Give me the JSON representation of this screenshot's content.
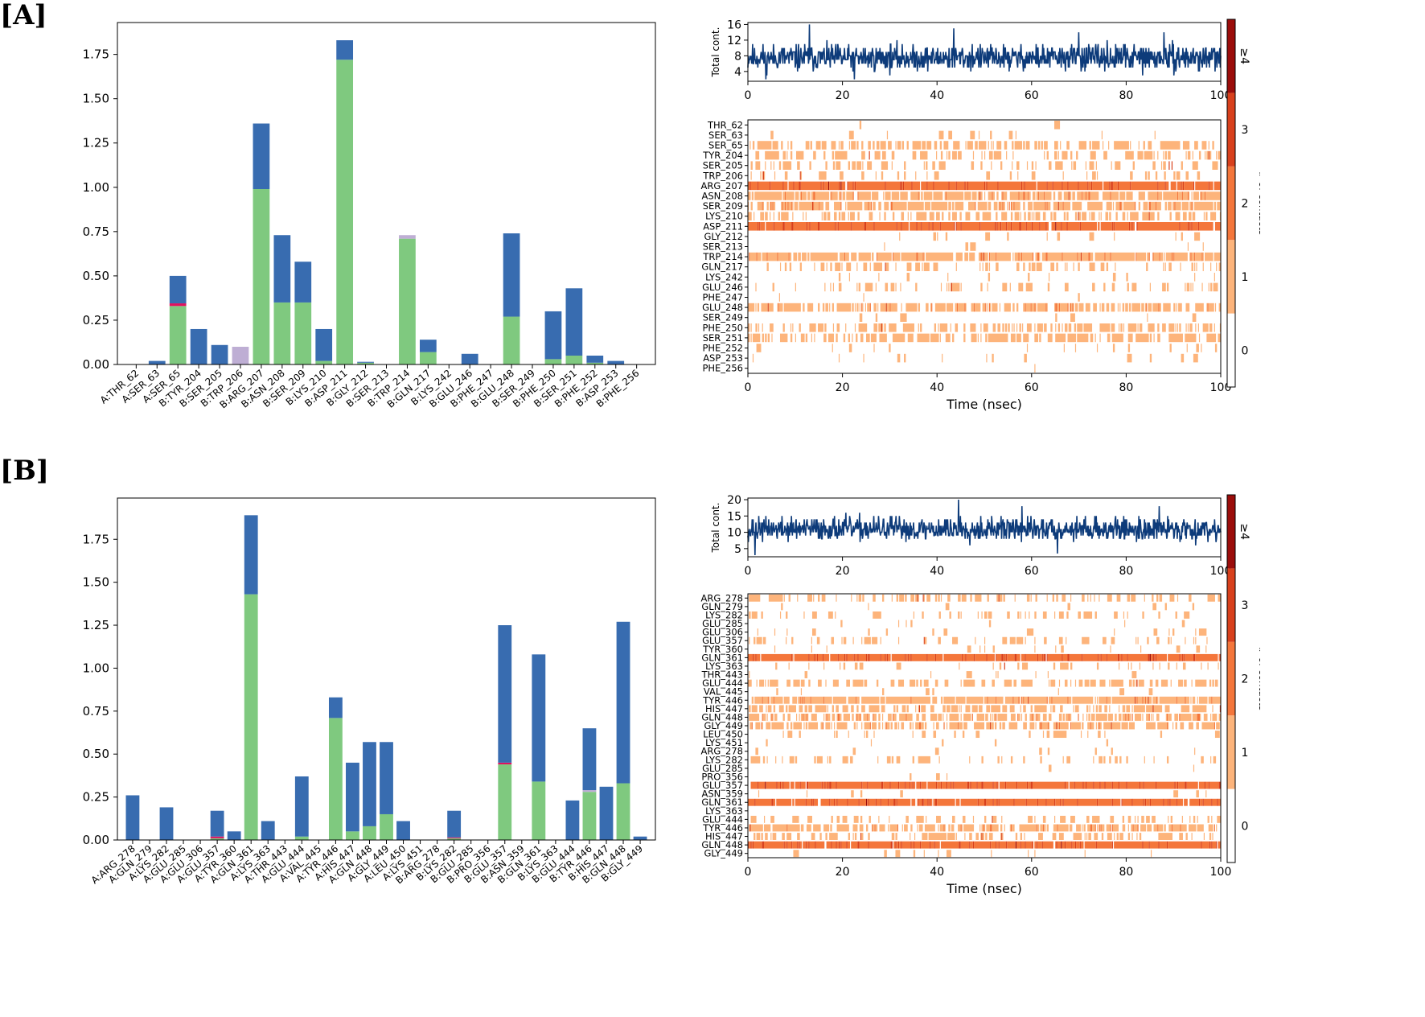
{
  "colors": {
    "hbond": "#7fc97f",
    "hydrophobic": "#beaed4",
    "ionic": "#e0115f",
    "water_bridge": "#386cb0",
    "timeline_line": "#0d3b7a",
    "frame": "#000000",
    "heat_scale": [
      "#ffffff",
      "#fdb47b",
      "#f4763b",
      "#d8401c",
      "#9b0d0b"
    ]
  },
  "chart_data": [
    {
      "id": "A-bar",
      "panel": "[A]",
      "type": "bar",
      "stacked": true,
      "categories": [
        "A:THR_62",
        "A:SER_63",
        "A:SER_65",
        "B:TYR_204",
        "B:SER_205",
        "B:TRP_206",
        "B:ARG_207",
        "B:ASN_208",
        "B:SER_209",
        "B:LYS_210",
        "B:ASP_211",
        "B:GLY_212",
        "B:SER_213",
        "B:TRP_214",
        "B:GLN_217",
        "B:LYS_242",
        "B:GLU_246",
        "B:PHE_247",
        "B:GLU_248",
        "B:SER_249",
        "B:PHE_250",
        "B:SER_251",
        "B:PHE_252",
        "B:ASP_253",
        "B:PHE_256"
      ],
      "series": [
        {
          "key": "hbond",
          "values": [
            0,
            0,
            0.33,
            0,
            0,
            0,
            0.99,
            0.35,
            0.35,
            0.02,
            1.72,
            0.01,
            0,
            0.71,
            0.07,
            0,
            0,
            0,
            0.27,
            0,
            0.03,
            0.05,
            0.01,
            0,
            0
          ]
        },
        {
          "key": "hydrophobic",
          "values": [
            0,
            0,
            0,
            0,
            0,
            0.1,
            0,
            0,
            0,
            0,
            0,
            0,
            0,
            0.02,
            0,
            0,
            0,
            0,
            0,
            0,
            0,
            0,
            0,
            0,
            0
          ]
        },
        {
          "key": "ionic",
          "values": [
            0,
            0,
            0.015,
            0,
            0,
            0,
            0,
            0,
            0,
            0,
            0,
            0,
            0,
            0,
            0,
            0,
            0,
            0,
            0,
            0,
            0,
            0,
            0,
            0,
            0
          ]
        },
        {
          "key": "water_bridge",
          "values": [
            0,
            0.02,
            0.155,
            0.2,
            0.11,
            0,
            0.37,
            0.38,
            0.23,
            0.18,
            0.11,
            0.005,
            0,
            0,
            0.07,
            0,
            0.06,
            0,
            0.47,
            0,
            0.27,
            0.38,
            0.04,
            0.02,
            0
          ]
        }
      ],
      "ylim": [
        0,
        1.93
      ],
      "yticks": [
        "0.00",
        "0.25",
        "0.50",
        "0.75",
        "1.00",
        "1.25",
        "1.50",
        "1.75"
      ]
    },
    {
      "id": "A-total",
      "type": "line",
      "ylabel": "Total cont.",
      "xlim": [
        0,
        100
      ],
      "ylim": [
        1.5,
        16.5
      ],
      "yticks": [
        "4",
        "8",
        "12",
        "16"
      ],
      "xticks": [
        "0",
        "20",
        "40",
        "60",
        "80",
        "100"
      ],
      "n_points": 1000,
      "mean": 7.5,
      "spread": 2.3,
      "min": 2,
      "max": 16,
      "peaks": [
        [
          13.0,
          16
        ],
        [
          3.8,
          2
        ],
        [
          22.5,
          2
        ],
        [
          43.5,
          15
        ],
        [
          70,
          14
        ],
        [
          88,
          14
        ]
      ]
    },
    {
      "id": "A-heat",
      "type": "heatmap",
      "xlabel": "Time (nsec)",
      "xlim": [
        0,
        100
      ],
      "xticks": [
        "0",
        "20",
        "40",
        "60",
        "80",
        "100"
      ],
      "rows": [
        "THR_62",
        "SER_63",
        "SER_65",
        "TYR_204",
        "SER_205",
        "TRP_206",
        "ARG_207",
        "ASN_208",
        "SER_209",
        "LYS_210",
        "ASP_211",
        "GLY_212",
        "SER_213",
        "TRP_214",
        "GLN_217",
        "LYS_242",
        "GLU_246",
        "PHE_247",
        "GLU_248",
        "SER_249",
        "PHE_250",
        "SER_251",
        "PHE_252",
        "ASP_253",
        "PHE_256"
      ],
      "row_labels": [
        "THR_62",
        "SER_63",
        "SER_65",
        "TYR_204",
        "SER_205",
        "TRP_206",
        "ARG_207",
        "ASN_208",
        "SER_209",
        "LYS_210",
        "ASP_211",
        "GLY_212",
        "SER_213",
        "TRP_214",
        "GLN_217",
        "LYS_242",
        "GLU_246",
        "PHE_247",
        "GLU_248",
        "SER_249",
        "PHE_250",
        "SER_251",
        "PHE_252",
        "ASP_253",
        "PHE_256"
      ],
      "row_density": [
        0.01,
        0.03,
        0.42,
        0.25,
        0.14,
        0.09,
        0.97,
        0.78,
        0.7,
        0.35,
        0.99,
        0.04,
        0.01,
        0.8,
        0.22,
        0.03,
        0.12,
        0.01,
        0.6,
        0.02,
        0.37,
        0.5,
        0.05,
        0.03,
        0.01
      ],
      "row_level": [
        1,
        1,
        1,
        1,
        1,
        1,
        2,
        1,
        1,
        1,
        2,
        1,
        1,
        1,
        1,
        1,
        1,
        1,
        1,
        1,
        1,
        1,
        1,
        1,
        1
      ]
    },
    {
      "id": "A-cbar",
      "type": "heatmap",
      "ylabel": "# of contacts",
      "levels": [
        "0",
        "1",
        "2",
        "3",
        "≥4"
      ]
    },
    {
      "id": "B-bar",
      "panel": "[B]",
      "type": "bar",
      "stacked": true,
      "categories": [
        "A:ARG_278",
        "A:GLN_279",
        "A:LYS_282",
        "A:GLU_285",
        "A:GLU_306",
        "A:GLU_357",
        "A:TYR_360",
        "A:GLN_361",
        "A:LYS_363",
        "A:THR_443",
        "A:GLU_444",
        "A:VAL_445",
        "A:TYR_446",
        "A:HIS_447",
        "A:GLN_448",
        "A:GLY_449",
        "A:LEU_450",
        "A:LYS_451",
        "B:ARG_278",
        "B:LYS_282",
        "B:GLU_285",
        "B:PRO_356",
        "B:GLU_357",
        "B:ASN_359",
        "B:GLN_361",
        "B:LYS_363",
        "B:GLU_444",
        "B:TYR_446",
        "B:HIS_447",
        "B:GLN_448",
        "B:GLY_449"
      ],
      "series": [
        {
          "key": "hbond",
          "values": [
            0,
            0,
            0,
            0,
            0,
            0.01,
            0,
            1.43,
            0,
            0,
            0.02,
            0,
            0.71,
            0.05,
            0.08,
            0.15,
            0,
            0,
            0,
            0.01,
            0,
            0,
            0.44,
            0,
            0.34,
            0,
            0,
            0.28,
            0,
            0.33,
            0
          ]
        },
        {
          "key": "hydrophobic",
          "values": [
            0,
            0,
            0,
            0,
            0,
            0,
            0,
            0,
            0,
            0,
            0,
            0,
            0,
            0,
            0,
            0,
            0,
            0,
            0,
            0,
            0,
            0,
            0,
            0,
            0,
            0,
            0,
            0.01,
            0,
            0,
            0
          ]
        },
        {
          "key": "ionic",
          "values": [
            0,
            0,
            0,
            0,
            0,
            0.01,
            0,
            0,
            0,
            0,
            0,
            0,
            0,
            0,
            0,
            0,
            0,
            0,
            0,
            0.005,
            0,
            0,
            0.01,
            0,
            0,
            0,
            0,
            0,
            0,
            0,
            0
          ]
        },
        {
          "key": "water_bridge",
          "values": [
            0.26,
            0,
            0.19,
            0,
            0,
            0.15,
            0.05,
            0.46,
            0.11,
            0,
            0.35,
            0,
            0.12,
            0.4,
            0.49,
            0.42,
            0.11,
            0,
            0,
            0.155,
            0,
            0,
            0.8,
            0,
            0.74,
            0,
            0.23,
            0.36,
            0.31,
            0.94,
            0.02
          ]
        }
      ],
      "ylim": [
        0,
        1.99
      ],
      "yticks": [
        "0.00",
        "0.25",
        "0.50",
        "0.75",
        "1.00",
        "1.25",
        "1.50",
        "1.75"
      ]
    },
    {
      "id": "B-total",
      "type": "line",
      "ylabel": "Total cont.",
      "xlim": [
        0,
        100
      ],
      "ylim": [
        2.5,
        20.5
      ],
      "yticks": [
        "5",
        "10",
        "15",
        "20"
      ],
      "xticks": [
        "0",
        "20",
        "40",
        "60",
        "80",
        "100"
      ],
      "n_points": 1000,
      "mean": 11,
      "spread": 2.5,
      "min": 3,
      "max": 20,
      "peaks": [
        [
          0.5,
          9
        ],
        [
          1.5,
          3
        ],
        [
          44.5,
          20
        ],
        [
          65.5,
          3.5
        ],
        [
          58.0,
          18
        ],
        [
          87.0,
          18
        ]
      ]
    },
    {
      "id": "B-heat",
      "type": "heatmap",
      "xlabel": "Time (nsec)",
      "xlim": [
        0,
        100
      ],
      "xticks": [
        "0",
        "20",
        "40",
        "60",
        "80",
        "100"
      ],
      "rows": [
        "ARG_278",
        "GLN_279",
        "LYS_282",
        "GLU_285",
        "GLU_306",
        "GLU_357",
        "TYR_360",
        "GLN_361",
        "LYS_363",
        "THR_443",
        "GLU_444",
        "VAL_445",
        "TYR_446",
        "HIS_447",
        "GLN_448",
        "GLY_449",
        "LEU_450",
        "LYS_451",
        "ARG_278",
        "LYS_282",
        "GLU_285",
        "PRO_356",
        "GLU_357",
        "ASN_359",
        "GLN_361",
        "LYS_363",
        "GLU_444",
        "TYR_446",
        "HIS_447",
        "GLN_448",
        "GLY_449"
      ],
      "row_labels": [
        "ARG_278",
        "GLN_279",
        "LYS_282",
        "GLU_285",
        "GLU_306",
        "GLU_357",
        "TYR_360",
        "GLN_361",
        "LYS_363",
        "THR_443",
        "GLU_444",
        "VAL_445",
        "TYR_446",
        "HIS_447",
        "GLN_448",
        "GLY_449",
        "LEU_450",
        "LYS_451",
        "ARG_278",
        "LYS_282",
        "GLU_285",
        "PRO_356",
        "GLU_357",
        "ASN_359",
        "GLN_361",
        "LYS_363",
        "GLU_444",
        "TYR_446",
        "HIS_447",
        "GLN_448",
        "GLY_449"
      ],
      "row_density": [
        0.26,
        0.02,
        0.19,
        0.02,
        0.05,
        0.17,
        0.05,
        0.99,
        0.11,
        0.02,
        0.37,
        0.02,
        0.83,
        0.45,
        0.57,
        0.57,
        0.11,
        0.02,
        0.02,
        0.17,
        0.01,
        0.01,
        0.99,
        0.02,
        0.99,
        0.01,
        0.23,
        0.65,
        0.31,
        0.98,
        0.02
      ],
      "row_level": [
        1,
        1,
        1,
        1,
        1,
        1,
        1,
        2,
        1,
        1,
        1,
        1,
        1,
        1,
        1,
        1,
        1,
        1,
        1,
        1,
        1,
        1,
        2,
        1,
        2,
        1,
        1,
        1,
        1,
        2,
        1
      ]
    },
    {
      "id": "B-cbar",
      "type": "heatmap",
      "ylabel": "# of contacts",
      "levels": [
        "0",
        "1",
        "2",
        "3",
        "≥4"
      ]
    }
  ]
}
